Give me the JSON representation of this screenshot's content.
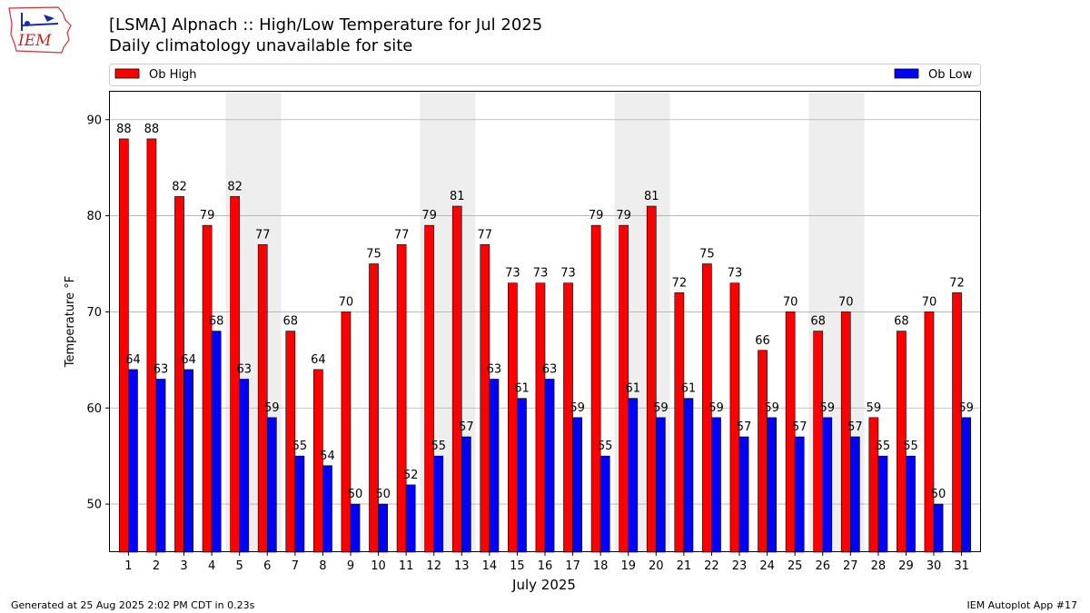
{
  "header": {
    "title": "[LSMA] Alpnach :: High/Low Temperature for Jul 2025",
    "subtitle": "Daily climatology unavailable for site",
    "logo_text": "IEM"
  },
  "footer": {
    "left": "Generated at 25 Aug 2025 2:02 PM CDT in 0.23s",
    "right": "IEM Autoplot App #17"
  },
  "colors": {
    "high": "#ff0000",
    "low": "#0000ff",
    "weekend": "#eeeeee",
    "grid": "#b0b0b0"
  },
  "chart_data": {
    "type": "bar",
    "title": "[LSMA] Alpnach :: High/Low Temperature for Jul 2025",
    "subtitle": "Daily climatology unavailable for site",
    "xlabel": "July 2025",
    "ylabel": "Temperature °F",
    "categories": [
      "1",
      "2",
      "3",
      "4",
      "5",
      "6",
      "7",
      "8",
      "9",
      "10",
      "11",
      "12",
      "13",
      "14",
      "15",
      "16",
      "17",
      "18",
      "19",
      "20",
      "21",
      "22",
      "23",
      "24",
      "25",
      "26",
      "27",
      "28",
      "29",
      "30",
      "31"
    ],
    "series": [
      {
        "name": "Ob High",
        "values": [
          88,
          88,
          82,
          79,
          82,
          77,
          68,
          64,
          70,
          75,
          77,
          79,
          81,
          77,
          73,
          73,
          73,
          79,
          79,
          81,
          72,
          75,
          73,
          66,
          70,
          68,
          70,
          59,
          68,
          70,
          72
        ]
      },
      {
        "name": "Ob Low",
        "values": [
          64,
          63,
          64,
          68,
          63,
          59,
          55,
          54,
          50,
          50,
          52,
          55,
          57,
          63,
          61,
          63,
          59,
          55,
          61,
          59,
          61,
          59,
          57,
          59,
          57,
          59,
          57,
          55,
          55,
          50,
          59
        ]
      }
    ],
    "shaded_days": [
      5,
      6,
      12,
      13,
      19,
      20,
      26,
      27
    ],
    "ylim": [
      45,
      93
    ],
    "yticks": [
      50,
      60,
      70,
      80,
      90
    ],
    "grid": true,
    "legend": "top"
  }
}
